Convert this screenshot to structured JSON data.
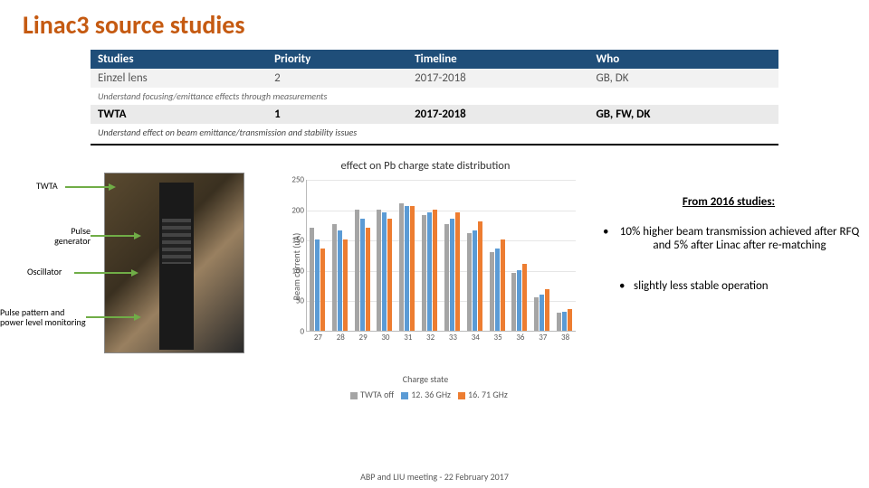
{
  "title": "Linac3 source studies",
  "table": {
    "headers": [
      "Studies",
      "Priority",
      "Timeline",
      "Who"
    ],
    "einzel": {
      "studies": "Einzel lens",
      "priority": "2",
      "timeline": "2017-2018",
      "who": "GB, DK"
    },
    "note1": "Understand focusing/emittance effects through measurements",
    "twta": {
      "studies": "TWTA",
      "priority": "1",
      "timeline": "2017-2018",
      "who": "GB, FW, DK"
    },
    "note2": "Understand effect on beam emittance/transmission and stability issues"
  },
  "callouts": {
    "twta": "TWTA",
    "pulse_gen": "Pulse\ngenerator",
    "oscillator": "Oscillator",
    "ppm": "Pulse pattern and\npower level monitoring"
  },
  "chart": {
    "title": "effect on Pb charge state distribution",
    "ylabel": "Beam current (uA)",
    "xlabel": "Charge state",
    "ylim": [
      0,
      250
    ],
    "ytick_step": 50,
    "categories": [
      27,
      28,
      29,
      30,
      31,
      32,
      33,
      34,
      35,
      36,
      37,
      38
    ],
    "series": [
      {
        "name": "TWTA off",
        "color": "#a5a5a5",
        "values": [
          170,
          175,
          200,
          200,
          210,
          190,
          175,
          160,
          130,
          95,
          55,
          30
        ]
      },
      {
        "name": "12.36 GHz",
        "color": "#5b9bd5",
        "values": [
          150,
          165,
          185,
          195,
          205,
          195,
          185,
          165,
          135,
          100,
          60,
          32
        ]
      },
      {
        "name": "16.71 GHz",
        "color": "#ed7d31",
        "values": [
          135,
          150,
          170,
          185,
          205,
          200,
          195,
          180,
          150,
          110,
          68,
          35
        ]
      }
    ],
    "legend_labels": [
      "TWTA off",
      "12. 36 GHz",
      "16. 71 GHz"
    ]
  },
  "notes": {
    "header": "From 2016 studies:",
    "item1": "10% higher beam transmission achieved after RFQ and 5% after Linac after re-matching",
    "item2": "slightly less stable operation"
  },
  "footer": "ABP and LIU meeting - 22 February 2017"
}
